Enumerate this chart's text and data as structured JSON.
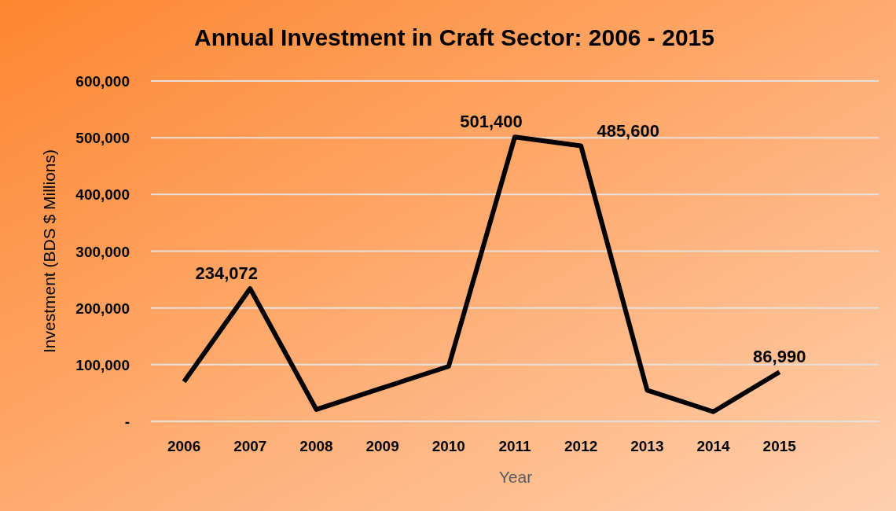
{
  "chart_data": {
    "type": "line",
    "title": "Annual Investment in Craft Sector: 2006 - 2015",
    "xlabel": "Year",
    "ylabel": "Investment (BDS $ Millions)",
    "categories": [
      "2006",
      "2007",
      "2008",
      "2009",
      "2010",
      "2011",
      "2012",
      "2013",
      "2014",
      "2015",
      null
    ],
    "series": [
      {
        "color": "#000000",
        "values": [
          70000,
          234072,
          21000,
          59000,
          97000,
          501400,
          485600,
          55000,
          17000,
          86990,
          null
        ],
        "value_labels": [
          null,
          "234,072",
          null,
          null,
          null,
          "501,400",
          "485,600",
          null,
          null,
          "86,990",
          null
        ]
      }
    ],
    "ylim": [
      0,
      600000
    ],
    "yticks": [
      {
        "value": 0,
        "label": "-"
      },
      {
        "value": 100000,
        "label": "100,000"
      },
      {
        "value": 200000,
        "label": "200,000"
      },
      {
        "value": 300000,
        "label": "300,000"
      },
      {
        "value": 400000,
        "label": "400,000"
      },
      {
        "value": 500000,
        "label": "500,000"
      },
      {
        "value": 600000,
        "label": "600,000"
      }
    ],
    "grid": "y",
    "marker": "none",
    "line_style": "solid"
  }
}
